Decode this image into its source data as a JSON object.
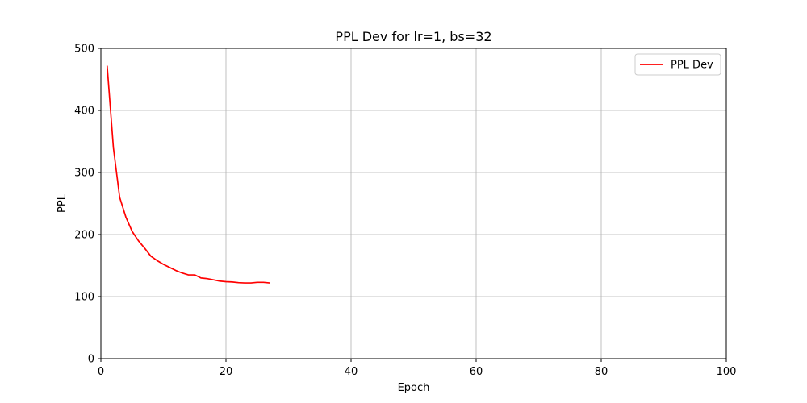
{
  "chart_data": {
    "type": "line",
    "title": "PPL Dev for lr=1, bs=32",
    "xlabel": "Epoch",
    "ylabel": "PPL",
    "xlim": [
      0,
      100
    ],
    "ylim": [
      0,
      500
    ],
    "xticks": [
      0,
      20,
      40,
      60,
      80,
      100
    ],
    "yticks": [
      0,
      100,
      200,
      300,
      400,
      500
    ],
    "grid": true,
    "legend_position": "top-right",
    "series": [
      {
        "name": "PPL Dev",
        "color": "#ff0000",
        "x": [
          1,
          2,
          3,
          4,
          5,
          6,
          7,
          8,
          9,
          10,
          11,
          12,
          13,
          14,
          15,
          16,
          17,
          18,
          19,
          20,
          21,
          22,
          23,
          24,
          25,
          26,
          27
        ],
        "y": [
          472,
          340,
          260,
          228,
          205,
          190,
          178,
          165,
          158,
          152,
          147,
          142,
          138,
          135,
          135,
          130,
          129,
          127,
          125,
          124,
          123.5,
          122.5,
          122,
          122,
          123,
          123,
          122
        ]
      }
    ]
  }
}
